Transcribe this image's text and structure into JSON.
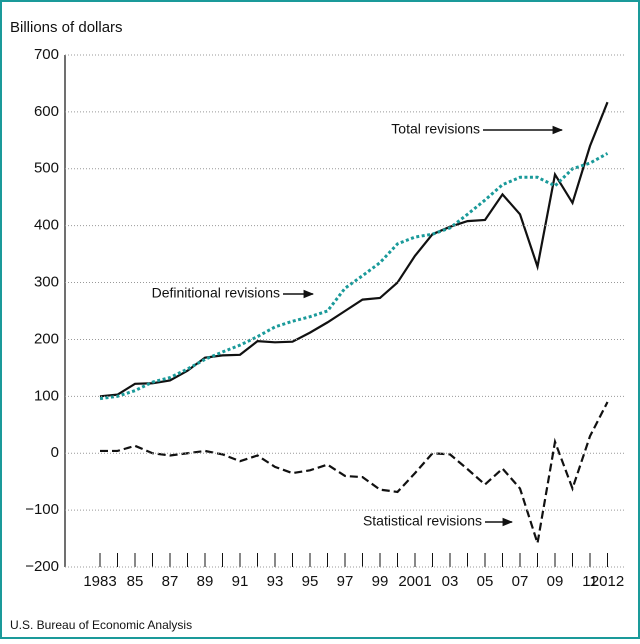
{
  "chart_data": {
    "type": "line",
    "y_label": "Billions of dollars",
    "source": "U.S. Bureau of Economic Analysis",
    "x": [
      1983,
      1984,
      1985,
      1986,
      1987,
      1988,
      1989,
      1990,
      1991,
      1992,
      1993,
      1994,
      1995,
      1996,
      1997,
      1998,
      1999,
      2000,
      2001,
      2002,
      2003,
      2004,
      2005,
      2006,
      2007,
      2008,
      2009,
      2010,
      2011,
      2012
    ],
    "series": [
      {
        "name": "Total revisions",
        "color": "#111111",
        "style": "solid",
        "values": [
          100,
          103,
          122,
          123,
          128,
          145,
          168,
          172,
          173,
          197,
          195,
          196,
          212,
          230,
          250,
          270,
          273,
          300,
          347,
          385,
          398,
          408,
          410,
          455,
          420,
          328,
          490,
          440,
          540,
          617
        ]
      },
      {
        "name": "Definitional revisions",
        "color": "#1a9a9a",
        "style": "dotted",
        "values": [
          96,
          100,
          110,
          125,
          133,
          148,
          165,
          178,
          190,
          205,
          222,
          232,
          240,
          250,
          290,
          312,
          335,
          368,
          380,
          385,
          396,
          420,
          445,
          472,
          485,
          485,
          470,
          500,
          510,
          527
        ]
      },
      {
        "name": "Statistical revisions",
        "color": "#111111",
        "style": "dashed",
        "values": [
          4,
          4,
          13,
          0,
          -4,
          0,
          4,
          -2,
          -14,
          -4,
          -24,
          -35,
          -30,
          -20,
          -40,
          -42,
          -64,
          -68,
          -35,
          0,
          -2,
          -28,
          -55,
          -27,
          -62,
          -158,
          20,
          -62,
          30,
          90
        ]
      }
    ],
    "xlim": [
      1981,
      2013
    ],
    "ylim": [
      -200,
      700
    ],
    "yticks": [
      {
        "value": -200,
        "label": "−200"
      },
      {
        "value": -100,
        "label": "−100"
      },
      0,
      100,
      200,
      300,
      400,
      500,
      600,
      700
    ],
    "xticks": [
      1983,
      {
        "value": 1985,
        "label": "85"
      },
      {
        "value": 1987,
        "label": "87"
      },
      {
        "value": 1989,
        "label": "89"
      },
      {
        "value": 1991,
        "label": "91"
      },
      {
        "value": 1993,
        "label": "93"
      },
      {
        "value": 1995,
        "label": "95"
      },
      {
        "value": 1997,
        "label": "97"
      },
      {
        "value": 1999,
        "label": "99"
      },
      2001,
      {
        "value": 2003,
        "label": "03"
      },
      {
        "value": 2005,
        "label": "05"
      },
      {
        "value": 2007,
        "label": "07"
      },
      {
        "value": 2009,
        "label": "09"
      },
      {
        "value": 2011,
        "label": "11"
      },
      2012
    ],
    "xminorticks": [
      1984,
      1986,
      1988,
      1990,
      1992,
      1994,
      1996,
      1998,
      2000,
      2002,
      2004,
      2006,
      2008,
      2010
    ],
    "grid": true
  }
}
